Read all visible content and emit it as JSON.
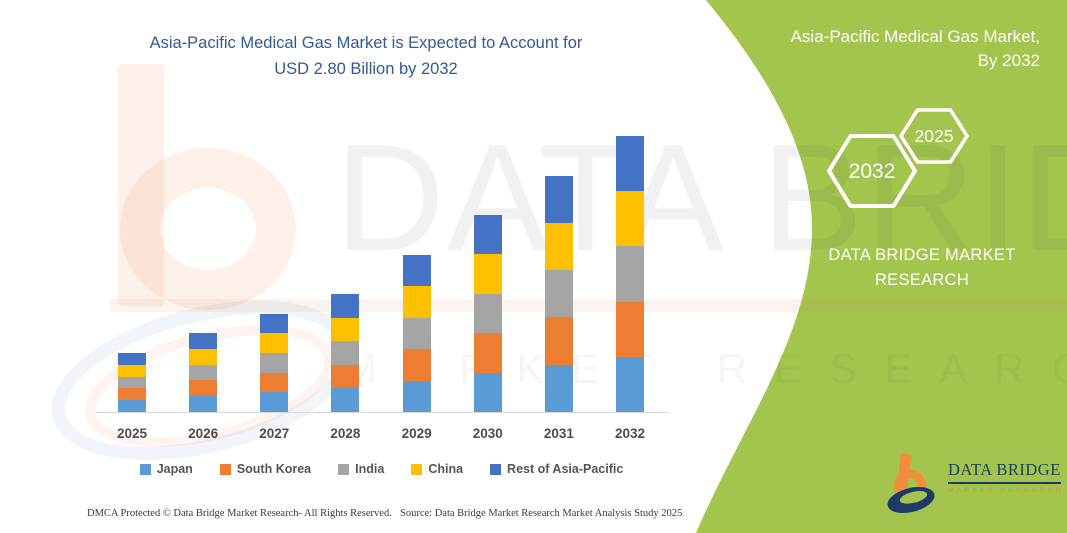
{
  "header": {
    "title_lines": [
      "Asia-Pacific Medical Gas Market is Expected to Account for",
      "USD 2.80 Billion by 2032"
    ],
    "color": "#315A98"
  },
  "side_panel": {
    "bg_color": "#A3C54E",
    "title_lines": [
      "Asia-Pacific Medical Gas Market,",
      "By 2032"
    ],
    "hexagon_back_label": "2032",
    "hexagon_front_label": "2025",
    "brand_text": "DATA BRIDGE MARKET RESEARCH"
  },
  "logo": {
    "name": "DATA BRIDGE",
    "tagline": "MARKET RESEARCH"
  },
  "watermark": {
    "primary": "DATA BRIDGE",
    "secondary": "MARKET RESEARCH"
  },
  "footer": {
    "dmca": "DMCA Protected © Data Bridge Market Research-  All Rights Reserved.",
    "source": "Source: Data Bridge Market Research  Market Analysis Study 2025"
  },
  "chart_data": {
    "type": "bar",
    "stacked": true,
    "title": "Asia-Pacific Medical Gas Market is Expected to Account for USD 2.80 Billion by 2032",
    "unit": "USD Billion",
    "categories": [
      "2025",
      "2026",
      "2027",
      "2028",
      "2029",
      "2030",
      "2031",
      "2032"
    ],
    "totals": [
      0.6,
      0.8,
      1.0,
      1.2,
      1.6,
      2.0,
      2.4,
      2.8
    ],
    "series": [
      {
        "name": "Japan",
        "color": "#5B9BD5",
        "values": [
          0.12,
          0.16,
          0.2,
          0.24,
          0.32,
          0.4,
          0.48,
          0.56
        ]
      },
      {
        "name": "South Korea",
        "color": "#ED7D31",
        "values": [
          0.12,
          0.16,
          0.2,
          0.24,
          0.32,
          0.4,
          0.48,
          0.56
        ]
      },
      {
        "name": "India",
        "color": "#A5A5A5",
        "values": [
          0.12,
          0.16,
          0.2,
          0.24,
          0.32,
          0.4,
          0.48,
          0.56
        ]
      },
      {
        "name": "China",
        "color": "#FFC000",
        "values": [
          0.12,
          0.16,
          0.2,
          0.24,
          0.32,
          0.4,
          0.48,
          0.56
        ]
      },
      {
        "name": "Rest of Asia-Pacific",
        "color": "#4472C4",
        "values": [
          0.12,
          0.16,
          0.2,
          0.24,
          0.32,
          0.4,
          0.48,
          0.56
        ]
      }
    ],
    "ylim": [
      0,
      2.97
    ],
    "gridlines": false,
    "legend_position": "bottom",
    "xlabel": "",
    "ylabel": ""
  }
}
